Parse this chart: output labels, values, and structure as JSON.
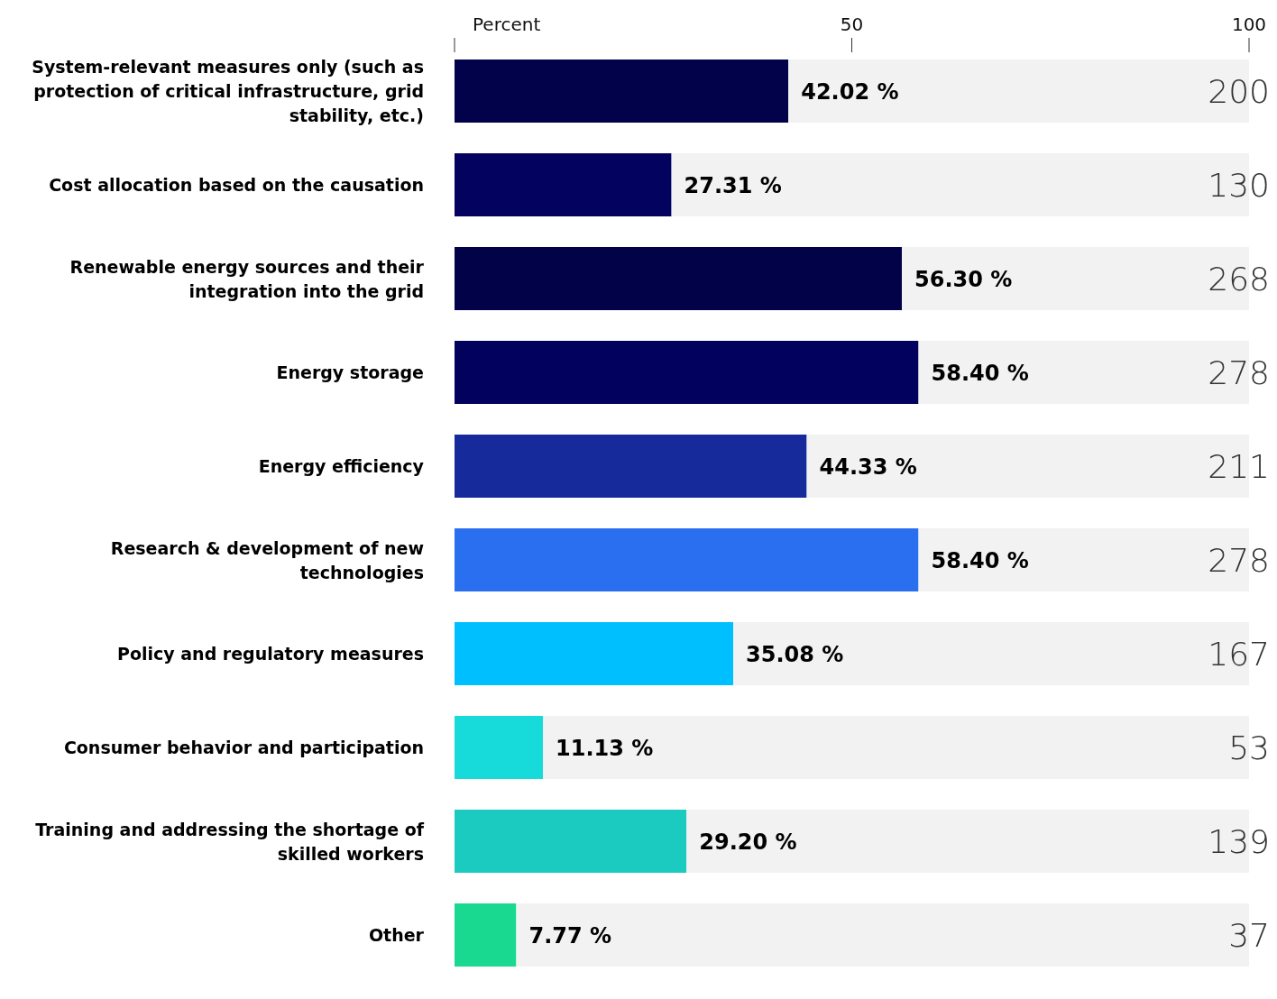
{
  "chart_data": {
    "type": "bar",
    "orientation": "horizontal",
    "stacked": true,
    "xlabel": "Percent",
    "categories": [
      "System-relevant measures only (such as protection of critical infrastructure, grid stability, etc.)",
      "Cost allocation based on the causation",
      "Renewable energy sources and their integration into the grid",
      "Energy storage",
      "Energy efficiency",
      "Research & development of new technologies",
      "Policy and regulatory measures",
      "Consumer behavior and participation",
      "Training and addressing the shortage of skilled workers",
      "Other"
    ],
    "series": [
      {
        "colors": [
          "#02024a",
          "#03035f",
          "#020249",
          "#02025e",
          "#172a9b",
          "#2a6ff0",
          "#00bfff",
          "#17dbdb",
          "#1bcbc0",
          "#19d990"
        ],
        "values": [
          42.02,
          27.31,
          56.3,
          58.4,
          44.33,
          58.4,
          35.08,
          11.13,
          29.2,
          7.77
        ],
        "value_labels": [
          "42.02 %",
          "27.31 %",
          "56.30 %",
          "58.40 %",
          "44.33 %",
          "58.40 %",
          "35.08 %",
          "11.13 %",
          "29.20 %",
          "7.77 %"
        ]
      },
      {
        "color": "#f2f2f2",
        "values": [
          57.98,
          72.69,
          43.7,
          41.6,
          55.67,
          41.6,
          64.92,
          88.87,
          70.8,
          92.23
        ]
      }
    ],
    "xlim": [
      0,
      100
    ],
    "xticks": [
      {
        "value": 0,
        "label": null
      },
      50,
      100
    ],
    "annotations": [
      "200",
      "130",
      "268",
      "278",
      "211",
      "278",
      "167",
      "53",
      "139",
      "37"
    ]
  }
}
